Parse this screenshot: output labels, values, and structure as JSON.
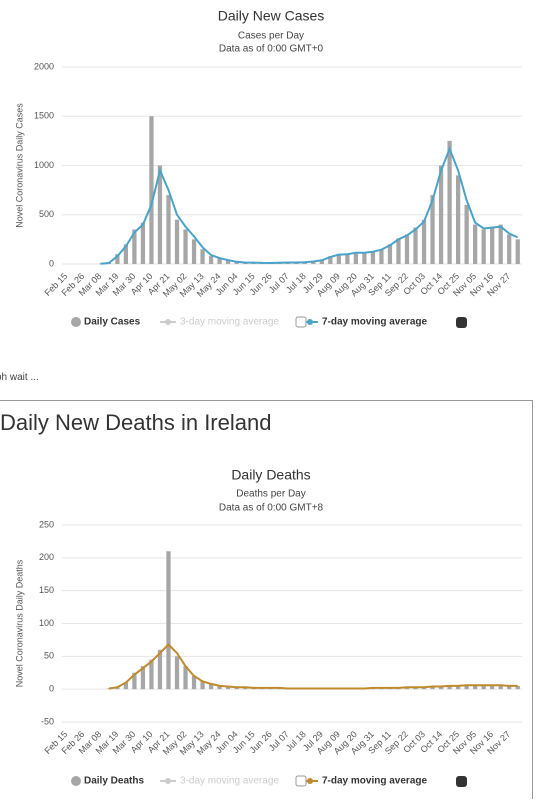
{
  "chart_data": [
    {
      "type": "bar",
      "title": "Daily New Cases",
      "subtitle": [
        "Cases per Day",
        "Data as of 0:00 GMT+0"
      ],
      "y_label": "Novel Coronavirus Daily Cases",
      "categories": [
        "Feb 15",
        null,
        "Feb 26",
        null,
        "Mar 08",
        null,
        "Mar 19",
        null,
        "Mar 30",
        null,
        "Apr 10",
        null,
        "Apr 21",
        null,
        "May 02",
        null,
        "May 13",
        null,
        "May 24",
        null,
        "Jun 04",
        null,
        "Jun 15",
        null,
        "Jun 26",
        null,
        "Jul 07",
        null,
        "Jul 18",
        null,
        "Jul 29",
        null,
        "Aug 09",
        null,
        "Aug 20",
        null,
        "Aug 31",
        null,
        "Sep 11",
        null,
        "Sep 22",
        null,
        "Oct 03",
        null,
        "Oct 14",
        null,
        "Oct 25",
        null,
        "Nov 05",
        null,
        "Nov 16",
        null,
        "Nov 27",
        null
      ],
      "series": [
        {
          "name": "Daily Cases",
          "type": "bar",
          "color": "#a6a6a6",
          "values": [
            0,
            0,
            0,
            0,
            2,
            15,
            100,
            200,
            350,
            420,
            1500,
            1000,
            700,
            450,
            350,
            250,
            150,
            80,
            60,
            40,
            20,
            15,
            15,
            10,
            10,
            15,
            15,
            15,
            20,
            25,
            40,
            80,
            100,
            100,
            120,
            110,
            130,
            150,
            200,
            260,
            300,
            370,
            450,
            700,
            1000,
            1250,
            900,
            600,
            400,
            350,
            380,
            400,
            300,
            250
          ]
        },
        {
          "name": "3-day moving average",
          "type": "line",
          "color": "#cccccc",
          "hidden": true
        },
        {
          "name": "7-day moving average",
          "type": "line",
          "color": "#4aa3c9",
          "values": [
            null,
            null,
            null,
            null,
            2,
            10,
            80,
            180,
            320,
            400,
            600,
            950,
            750,
            500,
            380,
            280,
            170,
            90,
            60,
            40,
            22,
            15,
            14,
            11,
            10,
            13,
            15,
            15,
            18,
            25,
            38,
            70,
            95,
            100,
            115,
            115,
            125,
            145,
            190,
            250,
            290,
            350,
            430,
            650,
            950,
            1170,
            950,
            650,
            420,
            360,
            370,
            380,
            310,
            270
          ]
        }
      ],
      "ylim": [
        0,
        2000
      ],
      "yticks": [
        0,
        500,
        1000,
        1500,
        2000
      ],
      "grid": true
    },
    {
      "type": "bar",
      "heading": "Daily New Deaths in Ireland",
      "title": "Daily Deaths",
      "subtitle": [
        "Deaths per Day",
        "Data as of 0:00 GMT+8"
      ],
      "y_label": "Novel Coronavirus Daily Deaths",
      "categories": [
        "Feb 15",
        null,
        "Feb 26",
        null,
        "Mar 08",
        null,
        "Mar 19",
        null,
        "Mar 30",
        null,
        "Apr 10",
        null,
        "Apr 21",
        null,
        "May 02",
        null,
        "May 13",
        null,
        "May 24",
        null,
        "Jun 04",
        null,
        "Jun 15",
        null,
        "Jun 26",
        null,
        "Jul 07",
        null,
        "Jul 18",
        null,
        "Jul 29",
        null,
        "Aug 09",
        null,
        "Aug 20",
        null,
        "Aug 31",
        null,
        "Sep 11",
        null,
        "Sep 22",
        null,
        "Oct 03",
        null,
        "Oct 14",
        null,
        "Oct 25",
        null,
        "Nov 05",
        null,
        "Nov 16",
        null,
        "Nov 27",
        null
      ],
      "series": [
        {
          "name": "Daily Deaths",
          "type": "bar",
          "color": "#a6a6a6",
          "values": [
            0,
            0,
            0,
            0,
            0,
            1,
            3,
            10,
            25,
            35,
            45,
            60,
            210,
            50,
            35,
            20,
            12,
            8,
            5,
            4,
            3,
            3,
            2,
            2,
            2,
            2,
            1,
            1,
            1,
            1,
            1,
            1,
            1,
            1,
            1,
            1,
            2,
            2,
            2,
            2,
            3,
            3,
            3,
            4,
            4,
            5,
            5,
            6,
            6,
            6,
            6,
            7,
            5,
            5
          ]
        },
        {
          "name": "3-day moving average",
          "type": "line",
          "color": "#cccccc",
          "hidden": true
        },
        {
          "name": "7-day moving average",
          "type": "line",
          "color": "#c08a2b",
          "values": [
            null,
            null,
            null,
            null,
            null,
            1,
            3,
            10,
            22,
            32,
            42,
            55,
            68,
            55,
            35,
            20,
            12,
            8,
            5,
            4,
            3,
            3,
            2,
            2,
            2,
            2,
            1,
            1,
            1,
            1,
            1,
            1,
            1,
            1,
            1,
            1,
            2,
            2,
            2,
            2,
            3,
            3,
            3,
            4,
            4,
            5,
            5,
            6,
            6,
            6,
            6,
            6,
            5,
            5
          ]
        }
      ],
      "ylim": [
        -50,
        250
      ],
      "yticks": [
        -50,
        0,
        50,
        100,
        150,
        200,
        250
      ],
      "grid": true
    }
  ],
  "note": "oh wait ..."
}
